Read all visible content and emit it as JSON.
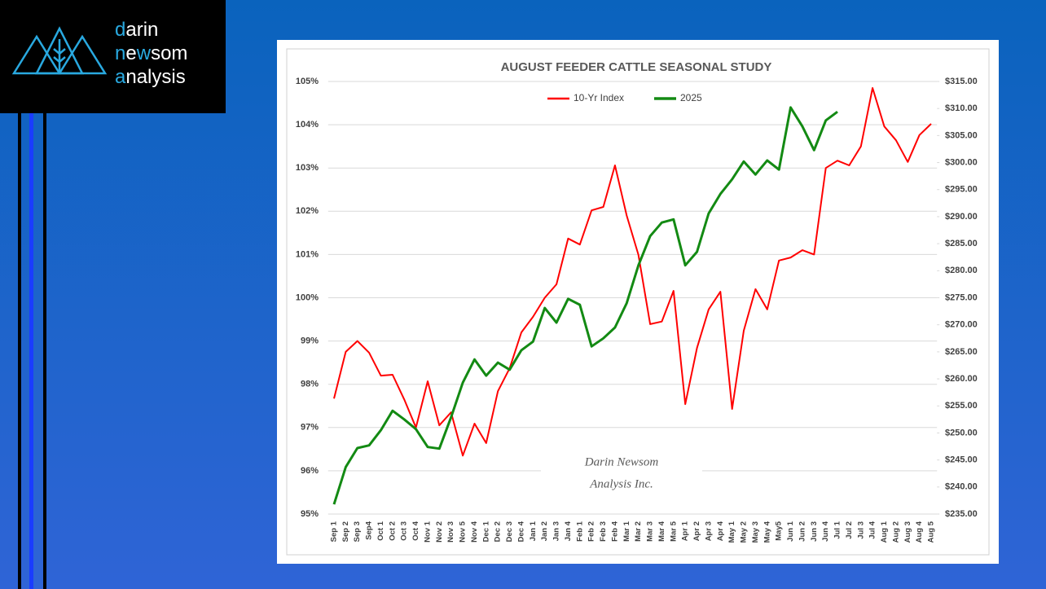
{
  "logo": {
    "lines": [
      [
        "d",
        "arin"
      ],
      [
        "n",
        "e",
        "w",
        "som"
      ],
      [
        "a",
        "nalysis"
      ]
    ]
  },
  "chart_data": {
    "type": "line",
    "title": "AUGUST FEEDER CATTLE SEASONAL STUDY",
    "watermark": [
      "Darin Newsom",
      "Analysis Inc."
    ],
    "legend": "top",
    "grid": true,
    "categories": [
      "Sep 1",
      "Sep 2",
      "Sep 3",
      "Sep4",
      "Oct 1",
      "Oct 2",
      "Oct 3",
      "Oct 4",
      "Nov 1",
      "Nov 2",
      "Nov 3",
      "Nov 5",
      "Nov 4",
      "Dec 1",
      "Dec 2",
      "Dec 3",
      "Dec 4",
      "Jan 1",
      "Jan 2",
      "Jan 3",
      "Jan 4",
      "Feb 1",
      "Feb 2",
      "Feb 3",
      "Feb 4",
      "Mar 1",
      "Mar 2",
      "Mar 3",
      "Mar 4",
      "Mar 5",
      "Apr 1",
      "Apr 2",
      "Apr 3",
      "Apr 4",
      "May 1",
      "May 2",
      "May 3",
      "May 4",
      "May5",
      "Jun 1",
      "Jun 2",
      "Jun 3",
      "Jun 4",
      "Jul 1",
      "Jul 2",
      "Jul 3",
      "Jul 4",
      "Aug 1",
      "Aug 2",
      "Aug 3",
      "Aug 4",
      "Aug 5"
    ],
    "ylim": [
      95,
      105
    ],
    "yticks": [
      {
        "value": 95,
        "label": "95%"
      },
      {
        "value": 96,
        "label": "96%"
      },
      {
        "value": 97,
        "label": "97%"
      },
      {
        "value": 98,
        "label": "98%"
      },
      {
        "value": 99,
        "label": "99%"
      },
      {
        "value": 100,
        "label": "100%"
      },
      {
        "value": 101,
        "label": "101%"
      },
      {
        "value": 102,
        "label": "102%"
      },
      {
        "value": 103,
        "label": "103%"
      },
      {
        "value": 104,
        "label": "104%"
      },
      {
        "value": 105,
        "label": "105%"
      }
    ],
    "y2lim": [
      235,
      315
    ],
    "y2ticks": [
      {
        "value": 235,
        "label": "$235.00"
      },
      {
        "value": 240,
        "label": "$240.00"
      },
      {
        "value": 245,
        "label": "$245.00"
      },
      {
        "value": 250,
        "label": "$250.00"
      },
      {
        "value": 255,
        "label": "$255.00"
      },
      {
        "value": 260,
        "label": "$260.00"
      },
      {
        "value": 265,
        "label": "$265.00"
      },
      {
        "value": 270,
        "label": "$270.00"
      },
      {
        "value": 275,
        "label": "$275.00"
      },
      {
        "value": 280,
        "label": "$280.00"
      },
      {
        "value": 285,
        "label": "$285.00"
      },
      {
        "value": 290,
        "label": "$290.00"
      },
      {
        "value": 295,
        "label": "$295.00"
      },
      {
        "value": 300,
        "label": "$300.00"
      },
      {
        "value": 305,
        "label": "$305.00"
      },
      {
        "value": 310,
        "label": "$310.00"
      },
      {
        "value": 315,
        "label": "$315.00"
      }
    ],
    "series": [
      {
        "name": "10-Yr Index",
        "color": "#ff0000",
        "values": [
          97.67,
          98.75,
          99.0,
          98.73,
          98.2,
          98.22,
          97.65,
          97.0,
          98.07,
          97.05,
          97.35,
          96.35,
          97.09,
          96.64,
          97.84,
          98.37,
          99.2,
          99.56,
          100.0,
          100.31,
          101.37,
          101.23,
          102.02,
          102.1,
          103.06,
          101.9,
          100.99,
          99.39,
          99.45,
          100.16,
          97.54,
          98.84,
          99.73,
          100.14,
          97.43,
          99.24,
          100.2,
          99.73,
          100.86,
          100.93,
          101.1,
          101.0,
          103.0,
          103.17,
          103.06,
          103.5,
          104.85,
          103.96,
          103.64,
          103.14,
          103.76,
          104.02
        ]
      },
      {
        "name": "2025",
        "color": "#138a13",
        "axis": "y2",
        "values": [
          236.8,
          243.7,
          247.2,
          247.7,
          250.5,
          254.1,
          252.5,
          250.7,
          247.4,
          247.1,
          252.9,
          259.3,
          263.6,
          260.6,
          263.0,
          261.7,
          265.3,
          266.9,
          273.1,
          270.4,
          274.8,
          273.7,
          266.0,
          267.5,
          269.5,
          274.0,
          281.0,
          286.4,
          288.9,
          289.5,
          281.0,
          283.5,
          290.6,
          294.2,
          296.9,
          300.2,
          297.8,
          300.4,
          298.7,
          310.2,
          306.7,
          302.3,
          307.8,
          309.4,
          null,
          null,
          null,
          null,
          null,
          null,
          null,
          null
        ]
      }
    ]
  }
}
